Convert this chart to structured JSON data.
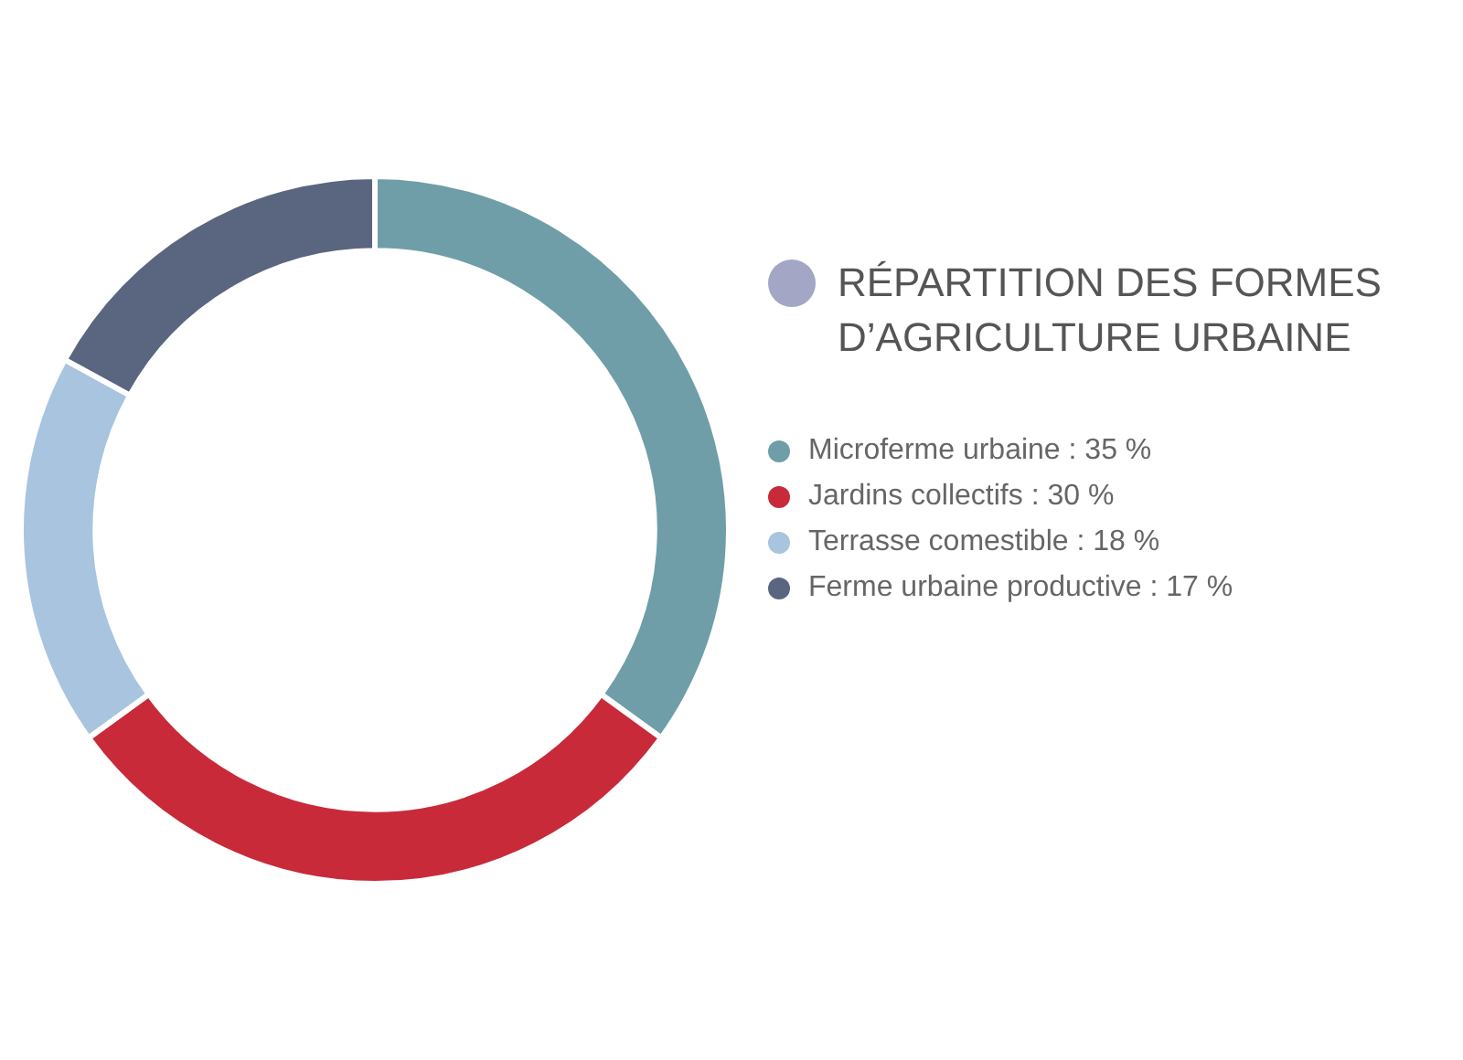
{
  "chart_data": {
    "type": "donut",
    "title": "RÉPARTITION DES FORMES D’AGRICULTURE URBAINE",
    "categories": [
      "Microferme urbaine",
      "Jardins collectifs",
      "Terrasse comestible",
      "Ferme urbaine productive"
    ],
    "values": [
      35,
      30,
      18,
      17
    ],
    "value_labels": [
      "35 %",
      "30 %",
      "18 %",
      "17 %"
    ],
    "colors": [
      "#6f9ea8",
      "#c82a3a",
      "#a9c4de",
      "#5a6680"
    ],
    "legend": "right"
  }
}
